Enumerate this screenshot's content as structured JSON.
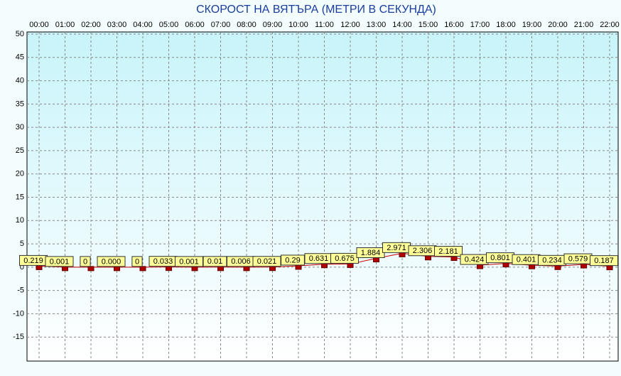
{
  "chart_data": {
    "type": "line",
    "title": "СКОРОСТ НА ВЯТЪРА (МЕТРИ В СЕКУНДА)",
    "categories": [
      "00:00",
      "01:00",
      "02:00",
      "03:00",
      "04:00",
      "05:00",
      "06:00",
      "07:00",
      "08:00",
      "09:00",
      "10:00",
      "11:00",
      "12:00",
      "13:00",
      "14:00",
      "15:00",
      "16:00",
      "17:00",
      "18:00",
      "19:00",
      "20:00",
      "21:00",
      "22:00"
    ],
    "values": [
      0.219,
      0.001,
      0,
      0.0,
      0,
      0.033,
      0.001,
      0.01,
      0.006,
      0.021,
      0.29,
      0.631,
      0.675,
      1.884,
      2.971,
      2.306,
      2.181,
      0.424,
      0.801,
      0.401,
      0.234,
      0.579,
      0.187
    ],
    "value_labels": [
      "0.219",
      "0.001",
      "0",
      "0.000",
      "0",
      "0.033",
      "0.001",
      "0.01",
      "0.006",
      "0.021",
      "0.29",
      "0.631",
      "0.675",
      "1.884",
      "2.971",
      "2.306",
      "2.181",
      "0.424",
      "0.801",
      "0.401",
      "0.234",
      "0.579",
      "0.187"
    ],
    "color": "#cc0000",
    "ylim": [
      -20,
      50
    ],
    "yticks": [
      -15,
      -10,
      -5,
      0,
      5,
      10,
      15,
      20,
      25,
      30,
      35,
      40,
      45,
      50
    ],
    "grid": true
  }
}
